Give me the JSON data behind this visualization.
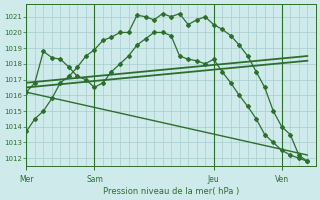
{
  "bg_color": "#ceeaea",
  "grid_color": "#a8cccc",
  "line_color": "#2d6e2d",
  "title": "Pression niveau de la mer( hPa )",
  "ylim": [
    1011.5,
    1021.8
  ],
  "yticks": [
    1012,
    1013,
    1014,
    1015,
    1016,
    1017,
    1018,
    1019,
    1020,
    1021
  ],
  "day_labels": [
    "Mer",
    "Sam",
    "Jeu",
    "Ven"
  ],
  "day_positions": [
    0,
    8,
    22,
    30
  ],
  "xlim": [
    0,
    34
  ],
  "vline_positions": [
    0,
    8,
    22,
    30
  ],
  "series1_x": [
    0,
    1,
    2,
    3,
    4,
    5,
    6,
    7,
    8,
    9,
    10,
    11,
    12,
    13,
    14,
    15,
    16,
    17,
    18,
    19,
    20,
    21,
    22,
    23,
    24,
    25,
    26,
    27,
    28,
    29,
    30,
    31,
    32,
    33
  ],
  "series1_y": [
    1013.7,
    1014.5,
    1015.0,
    1015.8,
    1016.8,
    1017.2,
    1017.8,
    1018.5,
    1018.9,
    1019.5,
    1019.7,
    1020.0,
    1020.0,
    1021.1,
    1021.0,
    1020.8,
    1021.2,
    1021.0,
    1021.2,
    1020.5,
    1020.8,
    1021.0,
    1020.5,
    1020.2,
    1019.8,
    1019.2,
    1018.5,
    1017.5,
    1016.5,
    1015.0,
    1014.0,
    1013.5,
    1012.2,
    1011.8
  ],
  "series2_x": [
    0,
    1,
    2,
    3,
    4,
    5,
    6,
    7,
    8,
    9,
    10,
    11,
    12,
    13,
    14,
    15,
    16,
    17,
    18,
    19,
    20,
    21,
    22,
    23,
    24,
    25,
    26,
    27,
    28,
    29,
    30,
    31,
    32,
    33
  ],
  "series2_y": [
    1016.2,
    1016.8,
    1018.8,
    1018.4,
    1018.3,
    1017.8,
    1017.2,
    1017.0,
    1016.5,
    1016.8,
    1017.5,
    1018.0,
    1018.5,
    1019.2,
    1019.6,
    1020.0,
    1020.0,
    1019.8,
    1018.5,
    1018.3,
    1018.2,
    1018.0,
    1018.3,
    1017.5,
    1016.8,
    1016.0,
    1015.3,
    1014.5,
    1013.5,
    1013.0,
    1012.5,
    1012.2,
    1012.0,
    1011.8
  ],
  "series3_x": [
    0,
    33
  ],
  "series3_y": [
    1016.8,
    1018.5
  ],
  "series4_x": [
    0,
    33
  ],
  "series4_y": [
    1016.5,
    1018.2
  ],
  "series5_x": [
    0,
    33
  ],
  "series5_y": [
    1016.2,
    1012.2
  ]
}
